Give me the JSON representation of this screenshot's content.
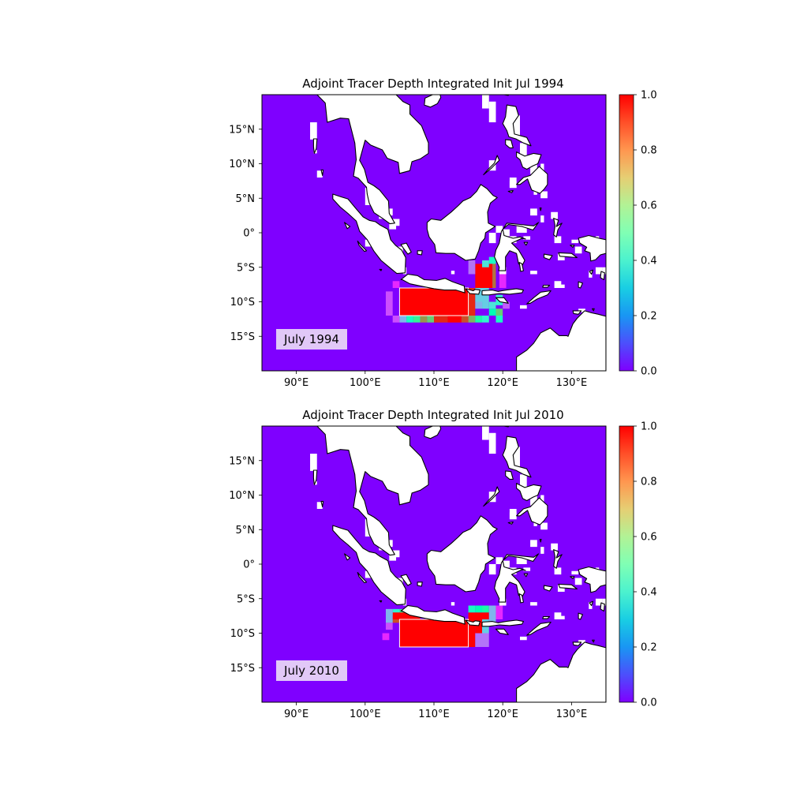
{
  "figure": {
    "panels": [
      {
        "title": "Adjoint Tracer Depth Integrated Init Jul 1994",
        "label": "July 1994",
        "hot_cells": [
          {
            "lon": 105.0,
            "lat": -8.0,
            "lon2": 115.0,
            "lat2": -12.0,
            "value": 1.0
          },
          {
            "lon": 115.0,
            "lat": -8.0,
            "lon2": 116.0,
            "lat2": -12.0,
            "value": 0.95
          },
          {
            "lon": 116.0,
            "lat": -4.5,
            "lon2": 118.5,
            "lat2": -8.0,
            "value": 1.0
          },
          {
            "lon": 118.5,
            "lat": -4.0,
            "lon2": 119.0,
            "lat2": -8.0,
            "value": 0.85
          },
          {
            "lon": 118.0,
            "lat": -3.5,
            "lon2": 119.0,
            "lat2": -4.5,
            "value": 0.45
          },
          {
            "lon": 117.0,
            "lat": -4.0,
            "lon2": 118.0,
            "lat2": -5.0,
            "value": 0.35
          },
          {
            "lon": 115.0,
            "lat": -4.0,
            "lon2": 116.0,
            "lat2": -6.0,
            "value": 0.15
          },
          {
            "lon": 104.0,
            "lat": -12.0,
            "lon2": 105.0,
            "lat2": -13.0,
            "value": 0.1
          },
          {
            "lon": 105.0,
            "lat": -12.0,
            "lon2": 106.0,
            "lat2": -13.0,
            "value": 0.25
          },
          {
            "lon": 106.0,
            "lat": -12.0,
            "lon2": 107.0,
            "lat2": -13.0,
            "value": 0.45
          },
          {
            "lon": 107.0,
            "lat": -12.0,
            "lon2": 108.0,
            "lat2": -13.0,
            "value": 0.6
          },
          {
            "lon": 108.0,
            "lat": -12.0,
            "lon2": 109.0,
            "lat2": -13.0,
            "value": 0.8
          },
          {
            "lon": 109.0,
            "lat": -12.0,
            "lon2": 110.0,
            "lat2": -13.0,
            "value": 0.7
          },
          {
            "lon": 110.0,
            "lat": -12.0,
            "lon2": 112.0,
            "lat2": -13.0,
            "value": 0.95
          },
          {
            "lon": 112.0,
            "lat": -12.0,
            "lon2": 114.0,
            "lat2": -13.0,
            "value": 1.0
          },
          {
            "lon": 114.0,
            "lat": -12.0,
            "lon2": 115.0,
            "lat2": -13.0,
            "value": 0.9
          },
          {
            "lon": 115.0,
            "lat": -12.0,
            "lon2": 116.0,
            "lat2": -13.0,
            "value": 0.75
          },
          {
            "lon": 116.0,
            "lat": -12.0,
            "lon2": 117.0,
            "lat2": -13.0,
            "value": 0.55
          },
          {
            "lon": 117.0,
            "lat": -12.0,
            "lon2": 118.0,
            "lat2": -13.0,
            "value": 0.4
          },
          {
            "lon": 118.0,
            "lat": -11.0,
            "lon2": 119.0,
            "lat2": -12.0,
            "value": 0.5
          },
          {
            "lon": 119.0,
            "lat": -11.0,
            "lon2": 120.0,
            "lat2": -12.0,
            "value": 0.7
          },
          {
            "lon": 119.0,
            "lat": -12.0,
            "lon2": 120.0,
            "lat2": -13.0,
            "value": 0.45
          },
          {
            "lon": 118.0,
            "lat": -10.0,
            "lon2": 119.0,
            "lat2": -11.0,
            "value": 0.35
          },
          {
            "lon": 119.0,
            "lat": -9.0,
            "lon2": 120.0,
            "lat2": -10.5,
            "value": 0.4
          },
          {
            "lon": 116.0,
            "lat": -8.0,
            "lon2": 118.0,
            "lat2": -10.0,
            "value": 0.3
          },
          {
            "lon": 116.0,
            "lat": -10.0,
            "lon2": 117.0,
            "lat2": -11.0,
            "value": 0.25
          },
          {
            "lon": 117.0,
            "lat": -10.0,
            "lon2": 118.0,
            "lat2": -11.0,
            "value": 0.3
          },
          {
            "lon": 103.0,
            "lat": -8.5,
            "lon2": 104.0,
            "lat2": -12.0,
            "value": 0.1
          },
          {
            "lon": 104.0,
            "lat": -7.0,
            "lon2": 105.0,
            "lat2": -8.0,
            "value": 0.05
          },
          {
            "lon": 120.0,
            "lat": -10.0,
            "lon2": 121.0,
            "lat2": -11.0,
            "value": 0.12
          },
          {
            "lon": 119.5,
            "lat": -5.0,
            "lon2": 120.5,
            "lat2": -8.0,
            "value": 0.05
          }
        ]
      },
      {
        "title": "Adjoint Tracer Depth Integrated Init Jul 2010",
        "label": "July 2010",
        "hot_cells": [
          {
            "lon": 105.0,
            "lat": -8.0,
            "lon2": 115.0,
            "lat2": -12.0,
            "value": 1.0
          },
          {
            "lon": 104.0,
            "lat": -6.5,
            "lon2": 105.0,
            "lat2": -7.5,
            "value": 0.4
          },
          {
            "lon": 104.0,
            "lat": -7.5,
            "lon2": 105.0,
            "lat2": -8.5,
            "value": 0.9
          },
          {
            "lon": 105.0,
            "lat": -6.5,
            "lon2": 106.0,
            "lat2": -7.5,
            "value": 0.6
          },
          {
            "lon": 104.0,
            "lat": -7.0,
            "lon2": 108.0,
            "lat2": -8.0,
            "value": 1.0
          },
          {
            "lon": 103.0,
            "lat": -6.5,
            "lon2": 104.0,
            "lat2": -8.5,
            "value": 0.25
          },
          {
            "lon": 103.0,
            "lat": -8.5,
            "lon2": 104.0,
            "lat2": -9.5,
            "value": 0.1
          },
          {
            "lon": 115.0,
            "lat": -8.0,
            "lon2": 116.0,
            "lat2": -12.0,
            "value": 1.0
          },
          {
            "lon": 115.0,
            "lat": -7.0,
            "lon2": 118.0,
            "lat2": -8.0,
            "value": 1.0
          },
          {
            "lon": 116.0,
            "lat": -8.0,
            "lon2": 117.0,
            "lat2": -10.0,
            "value": 1.0
          },
          {
            "lon": 115.0,
            "lat": -6.0,
            "lon2": 116.0,
            "lat2": -7.0,
            "value": 0.45
          },
          {
            "lon": 116.0,
            "lat": -6.0,
            "lon2": 117.0,
            "lat2": -7.0,
            "value": 0.5
          },
          {
            "lon": 117.0,
            "lat": -6.0,
            "lon2": 118.0,
            "lat2": -7.0,
            "value": 0.55
          },
          {
            "lon": 118.0,
            "lat": -6.0,
            "lon2": 119.0,
            "lat2": -9.0,
            "value": 0.25
          },
          {
            "lon": 117.0,
            "lat": -8.0,
            "lon2": 118.0,
            "lat2": -10.0,
            "value": 0.3
          },
          {
            "lon": 116.0,
            "lat": -10.0,
            "lon2": 118.0,
            "lat2": -12.0,
            "value": 0.15
          },
          {
            "lon": 119.0,
            "lat": -6.0,
            "lon2": 120.0,
            "lat2": -8.0,
            "value": 0.05
          },
          {
            "lon": 102.5,
            "lat": -10.0,
            "lon2": 103.5,
            "lat2": -11.0,
            "value": 0.05
          }
        ]
      }
    ],
    "lon_ticks": [
      "90°E",
      "100°E",
      "110°E",
      "120°E",
      "130°E"
    ],
    "lon_values": [
      90,
      100,
      110,
      120,
      130
    ],
    "lat_ticks": [
      "15°N",
      "10°N",
      "5°N",
      "0°",
      "5°S",
      "10°S",
      "15°S"
    ],
    "lat_values": [
      15,
      10,
      5,
      0,
      -5,
      -10,
      -15
    ],
    "colorbar_ticks": [
      "0.0",
      "0.2",
      "0.4",
      "0.6",
      "0.8",
      "1.0"
    ],
    "colorbar_values": [
      0.0,
      0.2,
      0.4,
      0.6,
      0.8,
      1.0
    ],
    "extent": {
      "lon_min": 85,
      "lon_max": 135,
      "lat_min": -20,
      "lat_max": 20
    },
    "colormap": "rainbow",
    "background_color": "#7f00ff",
    "land_color": "#ffffff",
    "coast_color": "#000000"
  }
}
